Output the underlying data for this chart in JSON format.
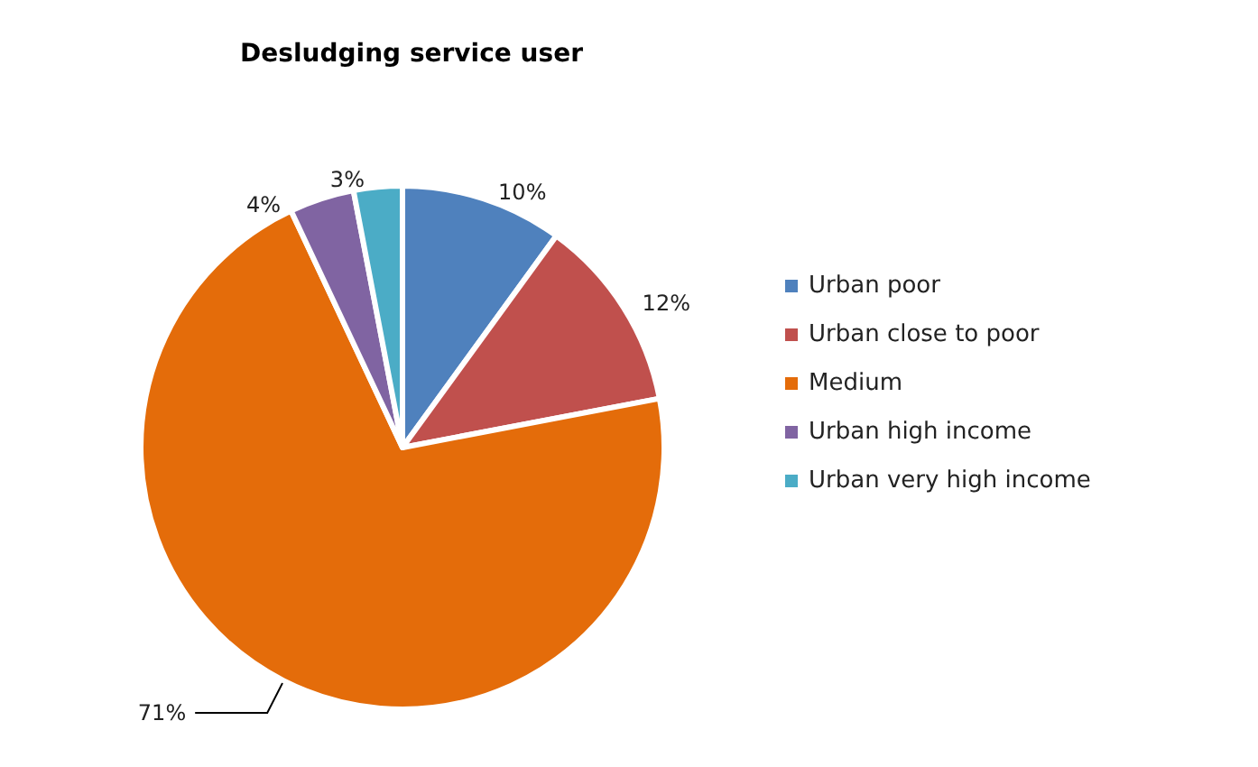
{
  "chart_data": {
    "type": "pie",
    "title": "Desludging service user",
    "categories": [
      "Urban poor",
      "Urban close to poor",
      "Medium",
      "Urban high income",
      "Urban very high income"
    ],
    "values": [
      10,
      12,
      71,
      4,
      3
    ],
    "colors": [
      "#4f81bd",
      "#c0504d",
      "#e46c0a",
      "#8064a2",
      "#4bacc6"
    ],
    "value_labels": [
      "10%",
      "12%",
      "71%",
      "4%",
      "3%"
    ],
    "legend": "right"
  }
}
